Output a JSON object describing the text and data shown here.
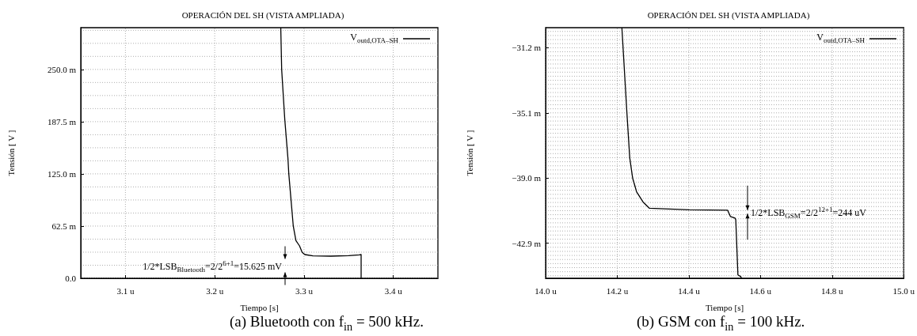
{
  "chart_data": [
    {
      "type": "line",
      "title": "OPERACIÓN DEL SH (VISTA AMPLIADA)",
      "xlabel": "Tiempo [s]",
      "ylabel": "Tensión [ V ]",
      "series": [
        {
          "name": "V$_{outd,OTA–SH}$",
          "color": "#000000",
          "x": [
            3.274,
            3.275,
            3.2785,
            3.282,
            3.283,
            3.285,
            3.288,
            3.291,
            3.295,
            3.298,
            3.301,
            3.31,
            3.33,
            3.35,
            3.362,
            3.364,
            3.364
          ],
          "values": [
            300,
            250,
            190,
            144,
            125,
            100,
            62.5,
            45,
            38.8,
            31,
            28.4,
            26.8,
            26.5,
            27,
            28,
            28.4,
            0
          ]
        }
      ],
      "xlim": [
        3.05,
        3.45
      ],
      "xticks": [
        {
          "value": 3.1,
          "label": "3.1 u"
        },
        {
          "value": 3.2,
          "label": "3.2 u"
        },
        {
          "value": 3.3,
          "label": "3.3 u"
        },
        {
          "value": 3.4,
          "label": "3.4 u"
        }
      ],
      "ylim": [
        0,
        300
      ],
      "yticks": [
        {
          "value": 0,
          "label": "0.0"
        },
        {
          "value": 62.5,
          "label": "62.5 m"
        },
        {
          "value": 125,
          "label": "125.0 m"
        },
        {
          "value": 187.5,
          "label": "187.5 m"
        },
        {
          "value": 250,
          "label": "250.0 m"
        }
      ],
      "grid": true,
      "legend": "top right",
      "annotations": [
        "1/2*LSB$_{Bluetooth}$=2/2$^{6+1}$=15.625 mV",
        "(a) Bluetooth con f$_{in}$ = 500 kHz."
      ]
    },
    {
      "type": "line",
      "title": "OPERACIÓN DEL SH (VISTA AMPLIADA)",
      "xlabel": "Tiempo [s]",
      "ylabel": "Tensión [ V ]",
      "series": [
        {
          "name": "V$_{outd,OTA–SH}$",
          "color": "#000000",
          "x": [
            14.213,
            14.227,
            14.235,
            14.243,
            14.254,
            14.272,
            14.29,
            14.4,
            14.508,
            14.516,
            14.529,
            14.531,
            14.537,
            14.545,
            14.547
          ],
          "values": [
            -30,
            -35.1,
            -37.8,
            -39,
            -39.82,
            -40.43,
            -40.81,
            -40.9,
            -40.92,
            -41.3,
            -41.4,
            -41.5,
            -44.8,
            -44.9,
            -45
          ]
        }
      ],
      "xlim": [
        14,
        15
      ],
      "xticks": [
        {
          "value": 14,
          "label": "14.0 u"
        },
        {
          "value": 14.2,
          "label": "14.2 u"
        },
        {
          "value": 14.4,
          "label": "14.4 u"
        },
        {
          "value": 14.6,
          "label": "14.6 u"
        },
        {
          "value": 14.8,
          "label": "14.8 u"
        },
        {
          "value": 15,
          "label": "15.0 u"
        }
      ],
      "ylim": [
        -45,
        -30
      ],
      "yticks": [
        {
          "value": -42.9,
          "label": "−42.9 m"
        },
        {
          "value": -39,
          "label": "−39.0 m"
        },
        {
          "value": -35.1,
          "label": "−35.1 m"
        },
        {
          "value": -31.2,
          "label": "−31.2 m"
        }
      ],
      "grid": true,
      "legend": "top right",
      "annotations": [
        "1/2*LSB$_{GSM}$=2/2$^{12+1}$=244 uV",
        "(b) GSM con f$_{in}$ = 100 kHz."
      ]
    }
  ]
}
